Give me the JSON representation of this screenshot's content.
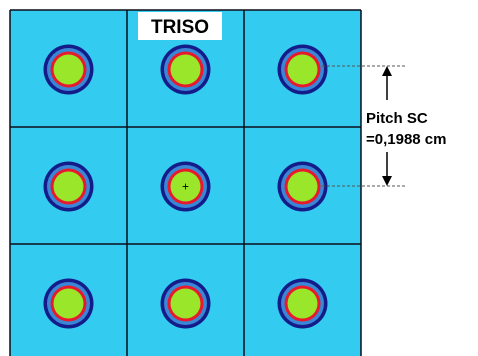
{
  "diagram": {
    "title": "TRISO",
    "pitch_label_line1": "Pitch SC",
    "pitch_label_line2": "=0,1988 cm",
    "grid": {
      "rows": 3,
      "cols": 3
    },
    "center_marker": "+",
    "colors": {
      "cell_background": "#33ccf0",
      "grid_lines": "#0d0d1a",
      "outer_layer": "#141c8a",
      "buffer_layer": "#3a86d6",
      "red_layer": "#e8192c",
      "kernel": "#99e62a",
      "title_background": "#ffffff"
    },
    "layers": [
      "kernel",
      "red-layer",
      "buffer-layer",
      "outer-layer"
    ]
  }
}
